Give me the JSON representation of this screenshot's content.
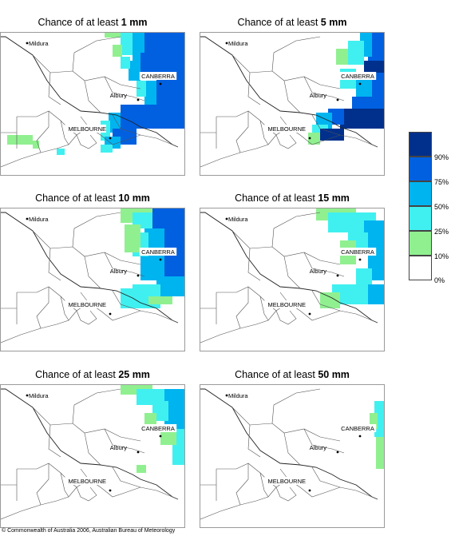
{
  "panels": [
    {
      "prefix": "Chance of at least ",
      "amount": "1 mm"
    },
    {
      "prefix": "Chance of at least ",
      "amount": "5 mm"
    },
    {
      "prefix": "Chance of at least ",
      "amount": "10 mm"
    },
    {
      "prefix": "Chance of at least ",
      "amount": "15 mm"
    },
    {
      "prefix": "Chance of at least ",
      "amount": "25 mm"
    },
    {
      "prefix": "Chance of at least ",
      "amount": "50 mm"
    }
  ],
  "places": {
    "mildura": "Mildura",
    "canberra": "CANBERRA",
    "albury": "Albury",
    "melbourne": "MELBOURNE"
  },
  "legend": {
    "labels": [
      "90%",
      "75%",
      "50%",
      "25%",
      "10%",
      "0%"
    ],
    "colors": [
      "#00308c",
      "#0060e0",
      "#00b4f0",
      "#40f0f0",
      "#90f090",
      "#ffffff"
    ]
  },
  "copyright": "© Commonwealth of Australia 2006, Australian Bureau of Meteorology"
}
